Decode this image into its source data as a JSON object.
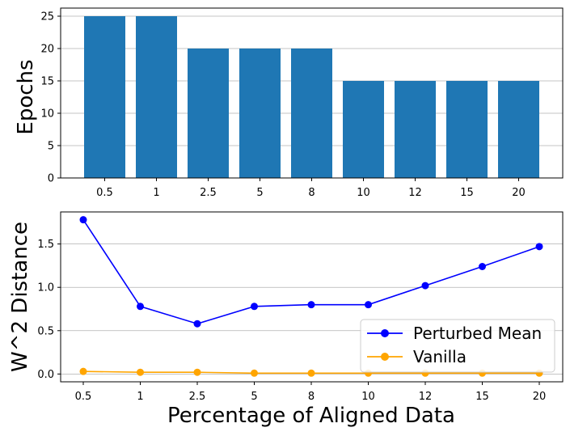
{
  "chart_data": [
    {
      "type": "bar",
      "categories": [
        "0.5",
        "1",
        "2.5",
        "5",
        "8",
        "10",
        "12",
        "15",
        "20"
      ],
      "values": [
        25,
        25,
        20,
        20,
        20,
        15,
        15,
        15,
        15
      ],
      "xlabel": "",
      "ylabel": "Epochs",
      "ylim": [
        0,
        26.25
      ],
      "yticks": [
        "0",
        "5",
        "10",
        "15",
        "20",
        "25"
      ],
      "grid": "y",
      "color": "#1f77b4"
    },
    {
      "type": "line",
      "categories": [
        "0.5",
        "1",
        "2.5",
        "5",
        "8",
        "10",
        "12",
        "15",
        "20"
      ],
      "series": [
        {
          "name": "Perturbed Mean",
          "values": [
            1.78,
            0.78,
            0.58,
            0.78,
            0.8,
            0.8,
            1.02,
            1.24,
            1.47
          ],
          "color": "#0000ff"
        },
        {
          "name": "Vanilla",
          "values": [
            0.03,
            0.02,
            0.02,
            0.01,
            0.01,
            0.01,
            0.01,
            0.01,
            0.01
          ],
          "color": "#ffa500"
        }
      ],
      "xlabel": "Percentage of Aligned Data",
      "ylabel": "W^2 Distance",
      "ylim": [
        -0.09,
        1.87
      ],
      "yticks": [
        "0.0",
        "0.5",
        "1.0",
        "1.5"
      ],
      "grid": "y",
      "legend": "lower-right"
    }
  ]
}
